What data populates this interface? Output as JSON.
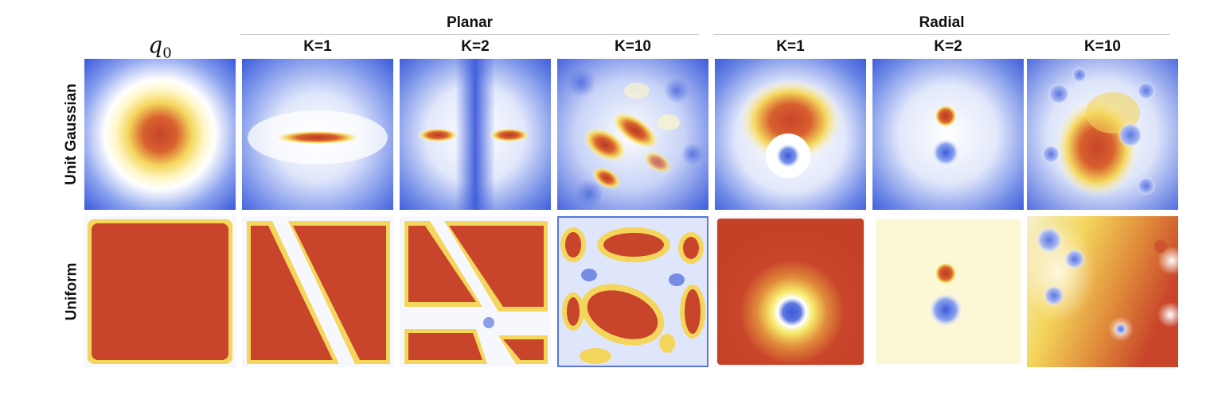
{
  "figure": {
    "groups": [
      {
        "title": "Planar"
      },
      {
        "title": "Radial"
      }
    ],
    "columns": [
      {
        "label_main": "q",
        "label_sub": "0"
      },
      {
        "label": "K=1"
      },
      {
        "label": "K=2"
      },
      {
        "label": "K=10"
      },
      {
        "label": "K=1"
      },
      {
        "label": "K=2"
      },
      {
        "label": "K=10"
      }
    ],
    "rows": [
      {
        "label": "Unit Gaussian"
      },
      {
        "label": "Uniform"
      }
    ],
    "colormap": {
      "low": "#3b5bdb",
      "mid_low": "#ffffff",
      "mid_high": "#f7e96b",
      "high": "#c8442a"
    }
  }
}
